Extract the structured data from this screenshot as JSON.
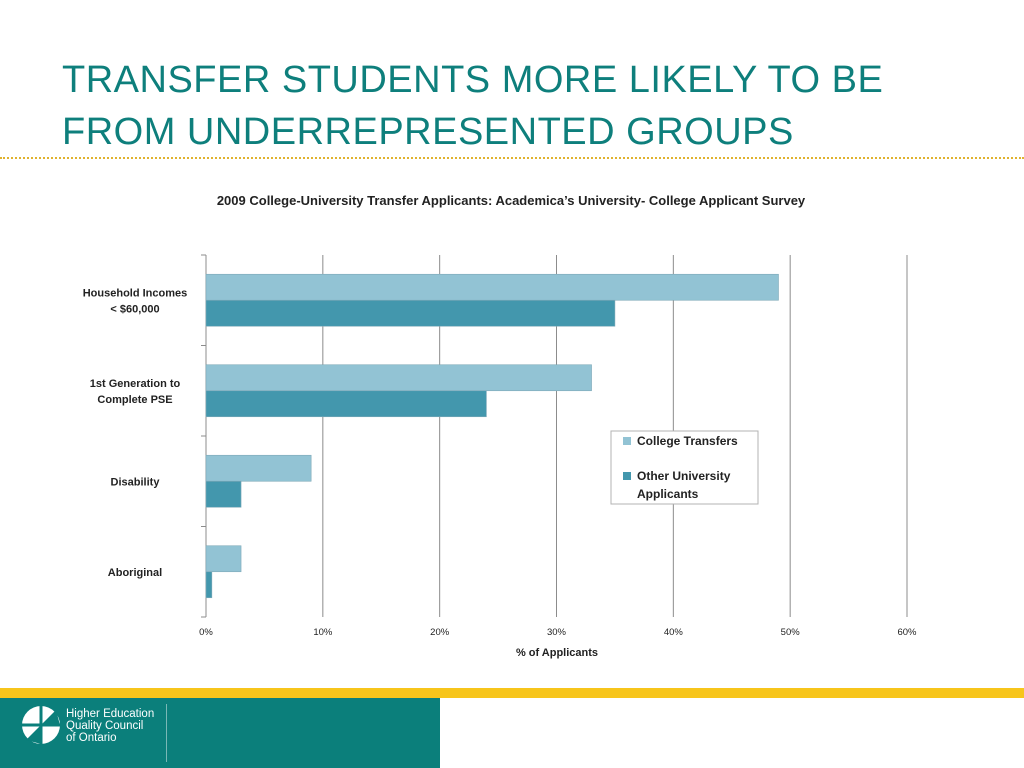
{
  "slide": {
    "title": "TRANSFER STUDENTS MORE LIKELY TO BE FROM UNDERREPRESENTED GROUPS"
  },
  "footer": {
    "org_name": "Higher Education\nQuality Council\nof Ontario"
  },
  "chart_data": {
    "type": "bar",
    "orientation": "horizontal",
    "title": "2009 College-University Transfer Applicants: Academica’s  University- College Applicant  Survey",
    "categories": [
      [
        "Household Incomes",
        "< $60,000"
      ],
      [
        "1st Generation to",
        "Complete PSE"
      ],
      [
        "Disability"
      ],
      [
        "Aboriginal"
      ]
    ],
    "series": [
      {
        "name": "College Transfers",
        "color": "#92c3d4",
        "values": [
          49,
          33,
          9,
          3
        ]
      },
      {
        "name": "Other University Applicants",
        "color": "#4397ad",
        "values": [
          35,
          24,
          3,
          0.5
        ]
      }
    ],
    "legend": {
      "position": "right",
      "entries": [
        [
          "College Transfers"
        ],
        [
          "Other University",
          "Applicants"
        ]
      ]
    },
    "xlabel": "% of Applicants",
    "xlim": [
      0,
      60
    ],
    "xticks": [
      "0%",
      "10%",
      "20%",
      "30%",
      "40%",
      "50%",
      "60%"
    ],
    "grid": true
  }
}
